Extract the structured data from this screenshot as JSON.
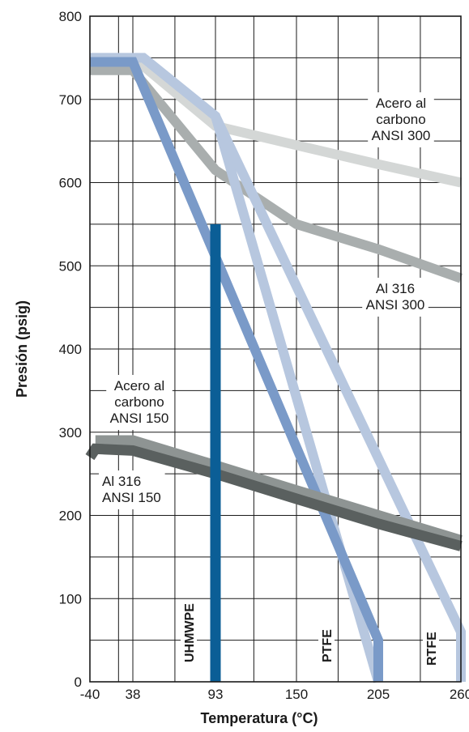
{
  "chart_data": {
    "type": "line",
    "xlabel": "Temperatura (°C)",
    "ylabel": "Presión (psig)",
    "xlim": [
      -40,
      260
    ],
    "ylim": [
      0,
      800
    ],
    "x_ticks": [
      -40,
      38,
      93,
      150,
      205,
      260
    ],
    "y_ticks": [
      0,
      100,
      200,
      300,
      400,
      500,
      600,
      700,
      800
    ],
    "grid": true,
    "series": [
      {
        "key": "cs300",
        "color": "#d4d7d6",
        "points": [
          [
            -40,
            740
          ],
          [
            45,
            740
          ],
          [
            93,
            668
          ],
          [
            150,
            645
          ],
          [
            205,
            622
          ],
          [
            260,
            600
          ]
        ]
      },
      {
        "key": "ss300",
        "color": "#a9aeae",
        "points": [
          [
            -40,
            735
          ],
          [
            38,
            735
          ],
          [
            93,
            615
          ],
          [
            150,
            550
          ],
          [
            205,
            520
          ],
          [
            260,
            485
          ]
        ]
      },
      {
        "key": "ptfe_rtfe_env",
        "color": "#b7c7df",
        "points": [
          [
            -40,
            750
          ],
          [
            45,
            750
          ],
          [
            93,
            680
          ],
          [
            205,
            0
          ]
        ]
      },
      {
        "key": "rtfe",
        "color": "#b7c7df",
        "points": [
          [
            93,
            680
          ],
          [
            260,
            60
          ],
          [
            260,
            0
          ]
        ]
      },
      {
        "key": "ptfe",
        "color": "#7a9ac8",
        "points": [
          [
            -40,
            745
          ],
          [
            38,
            745
          ],
          [
            205,
            50
          ],
          [
            205,
            0
          ]
        ]
      },
      {
        "key": "cs150",
        "color": "#8e9493",
        "points": [
          [
            -30,
            290
          ],
          [
            38,
            290
          ],
          [
            93,
            260
          ],
          [
            150,
            230
          ],
          [
            205,
            200
          ],
          [
            260,
            170
          ]
        ]
      },
      {
        "key": "ss150",
        "color": "#5a605f",
        "points": [
          [
            -40,
            270
          ],
          [
            -30,
            280
          ],
          [
            38,
            278
          ],
          [
            93,
            250
          ],
          [
            150,
            220
          ],
          [
            205,
            190
          ],
          [
            260,
            163
          ]
        ]
      },
      {
        "key": "uhmwpe",
        "color": "#0b5e96",
        "points": [
          [
            93,
            550
          ],
          [
            93,
            0
          ]
        ]
      }
    ],
    "annotations": {
      "cs300": [
        "Acero al",
        "carbono",
        "ANSI 300"
      ],
      "ss300": [
        "Al 316",
        "ANSI 300"
      ],
      "cs150": [
        "Acero al",
        "carbono",
        "ANSI 150"
      ],
      "ss150": [
        "Al 316",
        "ANSI 150"
      ],
      "uhmwpe": "UHMWPE",
      "ptfe": "PTFE",
      "rtfe": "RTFE"
    }
  }
}
